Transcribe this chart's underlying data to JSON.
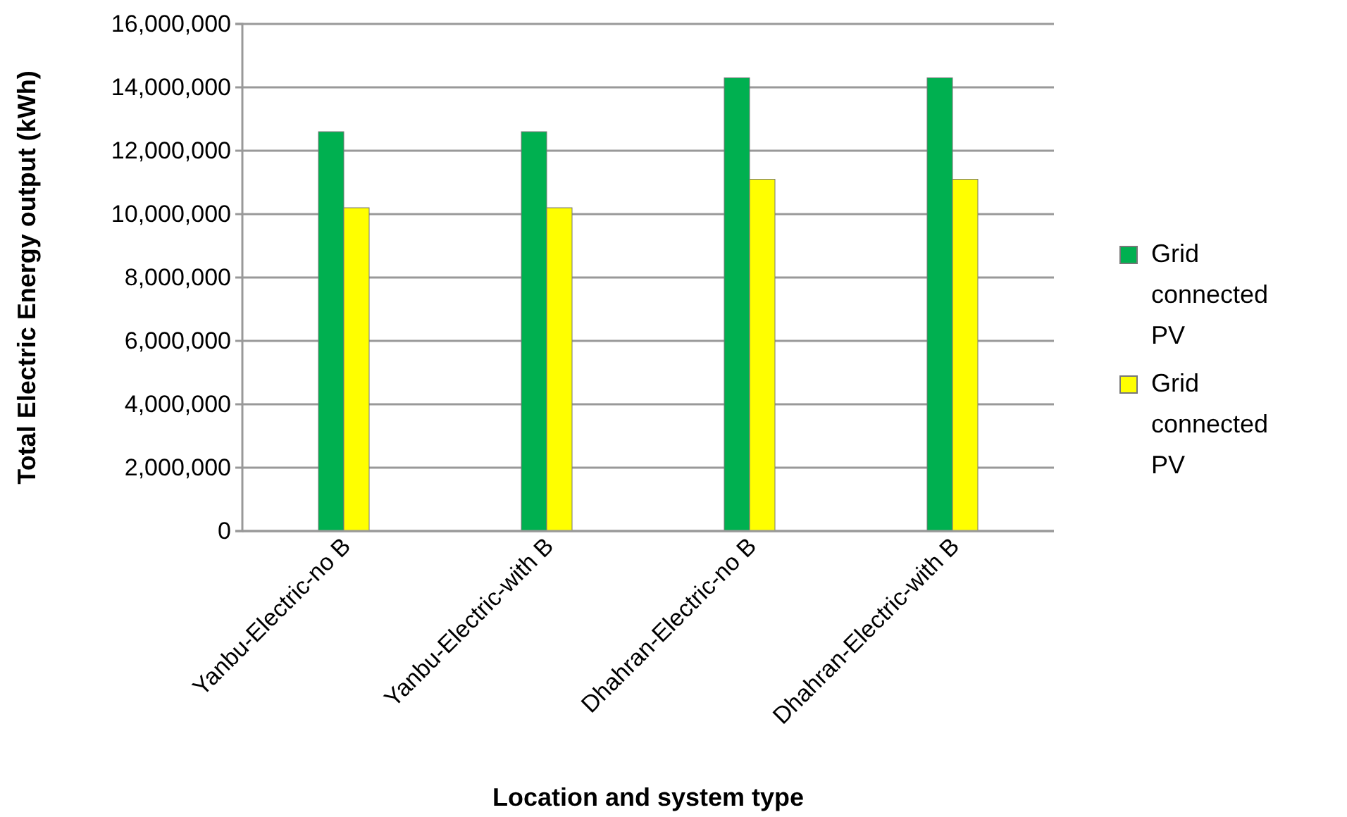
{
  "chart_data": {
    "type": "bar",
    "xlabel": "Location and system type",
    "ylabel": "Total Electric Energy output (kWh)",
    "categories": [
      "Yanbu-Electric-no B",
      "Yanbu-Electric-with B",
      "Dhahran-Electric-no B",
      "Dhahran-Electric-with B"
    ],
    "series": [
      {
        "name": "Grid connected PV",
        "color": "#00b050",
        "values": [
          12600000,
          12600000,
          14300000,
          14300000
        ]
      },
      {
        "name": "Grid connected PV",
        "color": "#ffff00",
        "values": [
          10200000,
          10200000,
          11100000,
          11100000
        ]
      }
    ],
    "ylim": [
      0,
      16000000
    ],
    "yticks": [
      {
        "value": 0,
        "label": "0"
      },
      {
        "value": 2000000,
        "label": "2,000,000"
      },
      {
        "value": 4000000,
        "label": "4,000,000"
      },
      {
        "value": 6000000,
        "label": "6,000,000"
      },
      {
        "value": 8000000,
        "label": "8,000,000"
      },
      {
        "value": 10000000,
        "label": "10,000,000"
      },
      {
        "value": 12000000,
        "label": "12,000,000"
      },
      {
        "value": 14000000,
        "label": "14,000,000"
      },
      {
        "value": 16000000,
        "label": "16,000,000"
      }
    ],
    "grid": "y",
    "legend": "right"
  }
}
